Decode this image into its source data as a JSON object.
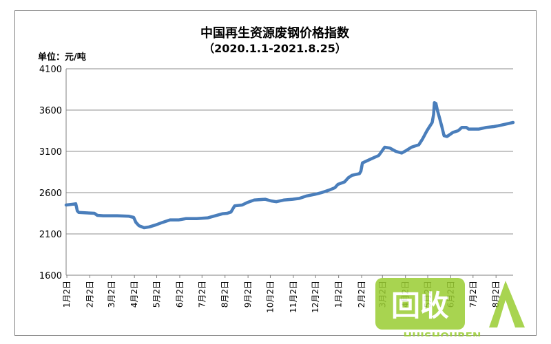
{
  "chart_data": {
    "type": "line",
    "title": "中国再生资源废钢价格指数",
    "subtitle": "（2020.1.1-2021.8.25）",
    "ylabel": "单位：元/吨",
    "xlabel": "",
    "ylim": [
      1600,
      4100
    ],
    "yticks": [
      1600,
      2100,
      2600,
      3100,
      3600,
      4100
    ],
    "grid": true,
    "legend": "none",
    "x_tick_labels": [
      "1月2日",
      "2月2日",
      "3月2日",
      "4月2日",
      "5月2日",
      "6月2日",
      "7月2日",
      "8月2日",
      "9月2日",
      "10月2日",
      "11月2日",
      "12月2日",
      "1月2日",
      "2月2日",
      "3月2日",
      "4月2日",
      "5月2日",
      "6月2日",
      "7月2日",
      "8月2日"
    ],
    "x_tick_dates": [
      "2020-01-02",
      "2020-02-02",
      "2020-03-02",
      "2020-04-02",
      "2020-05-02",
      "2020-06-02",
      "2020-07-02",
      "2020-08-02",
      "2020-09-02",
      "2020-10-02",
      "2020-11-02",
      "2020-12-02",
      "2021-01-02",
      "2021-02-02",
      "2021-03-02",
      "2021-04-02",
      "2021-05-02",
      "2021-06-02",
      "2021-07-02",
      "2021-08-02"
    ],
    "series": [
      {
        "color": "#4a7ebb",
        "points": [
          [
            "2020-01-01",
            2450
          ],
          [
            "2020-01-10",
            2460
          ],
          [
            "2020-01-14",
            2465
          ],
          [
            "2020-01-16",
            2380
          ],
          [
            "2020-01-18",
            2360
          ],
          [
            "2020-01-28",
            2355
          ],
          [
            "2020-02-08",
            2350
          ],
          [
            "2020-02-12",
            2325
          ],
          [
            "2020-02-20",
            2320
          ],
          [
            "2020-03-10",
            2320
          ],
          [
            "2020-03-25",
            2315
          ],
          [
            "2020-04-01",
            2300
          ],
          [
            "2020-04-04",
            2240
          ],
          [
            "2020-04-08",
            2200
          ],
          [
            "2020-04-15",
            2175
          ],
          [
            "2020-04-22",
            2185
          ],
          [
            "2020-05-01",
            2210
          ],
          [
            "2020-05-10",
            2240
          ],
          [
            "2020-05-20",
            2270
          ],
          [
            "2020-06-01",
            2270
          ],
          [
            "2020-06-10",
            2285
          ],
          [
            "2020-06-25",
            2285
          ],
          [
            "2020-07-10",
            2295
          ],
          [
            "2020-07-20",
            2320
          ],
          [
            "2020-07-30",
            2345
          ],
          [
            "2020-08-05",
            2350
          ],
          [
            "2020-08-10",
            2365
          ],
          [
            "2020-08-15",
            2440
          ],
          [
            "2020-08-25",
            2450
          ],
          [
            "2020-09-01",
            2480
          ],
          [
            "2020-09-10",
            2510
          ],
          [
            "2020-09-25",
            2520
          ],
          [
            "2020-10-03",
            2500
          ],
          [
            "2020-10-10",
            2490
          ],
          [
            "2020-10-20",
            2510
          ],
          [
            "2020-11-01",
            2520
          ],
          [
            "2020-11-10",
            2530
          ],
          [
            "2020-11-20",
            2560
          ],
          [
            "2020-12-01",
            2580
          ],
          [
            "2020-12-10",
            2600
          ],
          [
            "2020-12-20",
            2630
          ],
          [
            "2020-12-28",
            2660
          ],
          [
            "2021-01-01",
            2700
          ],
          [
            "2021-01-10",
            2730
          ],
          [
            "2021-01-15",
            2780
          ],
          [
            "2021-01-20",
            2810
          ],
          [
            "2021-01-30",
            2830
          ],
          [
            "2021-02-01",
            2860
          ],
          [
            "2021-02-03",
            2960
          ],
          [
            "2021-02-15",
            3010
          ],
          [
            "2021-02-25",
            3050
          ],
          [
            "2021-03-01",
            3100
          ],
          [
            "2021-03-05",
            3150
          ],
          [
            "2021-03-12",
            3140
          ],
          [
            "2021-03-20",
            3100
          ],
          [
            "2021-03-28",
            3080
          ],
          [
            "2021-04-03",
            3110
          ],
          [
            "2021-04-10",
            3150
          ],
          [
            "2021-04-20",
            3180
          ],
          [
            "2021-04-25",
            3250
          ],
          [
            "2021-05-01",
            3350
          ],
          [
            "2021-05-08",
            3450
          ],
          [
            "2021-05-10",
            3550
          ],
          [
            "2021-05-11",
            3690
          ],
          [
            "2021-05-13",
            3680
          ],
          [
            "2021-05-15",
            3600
          ],
          [
            "2021-05-18",
            3500
          ],
          [
            "2021-05-21",
            3400
          ],
          [
            "2021-05-24",
            3290
          ],
          [
            "2021-05-28",
            3280
          ],
          [
            "2021-06-05",
            3330
          ],
          [
            "2021-06-12",
            3350
          ],
          [
            "2021-06-17",
            3390
          ],
          [
            "2021-06-23",
            3390
          ],
          [
            "2021-06-26",
            3370
          ],
          [
            "2021-07-10",
            3370
          ],
          [
            "2021-07-20",
            3390
          ],
          [
            "2021-07-30",
            3400
          ],
          [
            "2021-08-05",
            3410
          ],
          [
            "2021-08-15",
            3430
          ],
          [
            "2021-08-25",
            3450
          ]
        ]
      }
    ]
  },
  "watermark": {
    "logo_text": "回收",
    "brand_text": "HUISHOUREN",
    "colors": {
      "lime": "#9acd32",
      "olive": "#6b8e23"
    }
  }
}
